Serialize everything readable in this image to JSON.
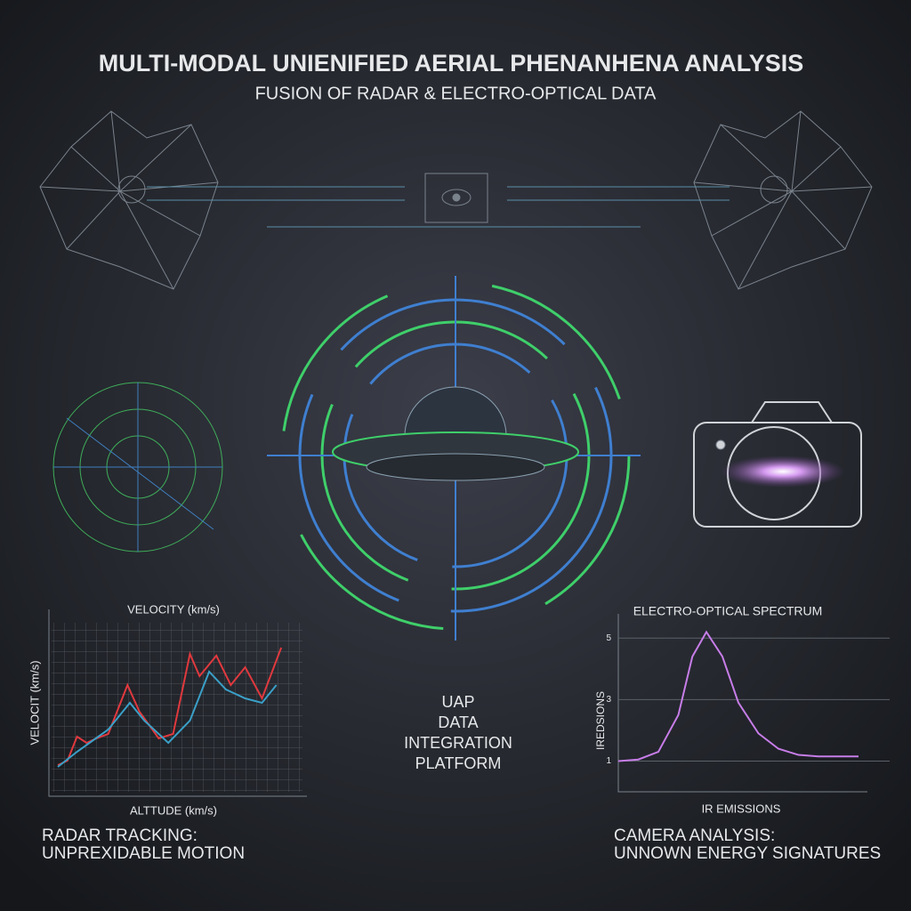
{
  "header": {
    "title": "MULTI-MODAL UNIENIFIED AERIAL PHENANHENA ANALYSIS",
    "subtitle": "FUSION OF RADAR & ELECTRO-OPTICAL DATA"
  },
  "center_label": [
    "UAP",
    "DATA",
    "INTEGRATION",
    "PLATFORM"
  ],
  "captions": {
    "left": [
      "RADAR TRACKING:",
      "UNPREXIDABLE MOTION"
    ],
    "right": [
      "CAMERA ANALYSIS:",
      "UNNOWN ENERGY SIGNATURES"
    ]
  },
  "chart_data": [
    {
      "type": "line",
      "title": "VELOCITY (km/s)",
      "x_label": "ALTTUDE (km/s)",
      "y_label": "VELOCIT (km/s)",
      "xlim": [
        0,
        10
      ],
      "ylim": [
        0,
        10
      ],
      "grid": true,
      "series": [
        {
          "color": "#e0393e",
          "x": [
            0,
            0.4,
            0.8,
            1.2,
            1.6,
            2.1,
            2.9,
            3.4,
            4.2,
            4.8,
            5.5,
            5.9,
            6.6,
            7.2,
            7.8,
            8.5,
            9.3
          ],
          "values": [
            1.75,
            2,
            3.35,
            3,
            3.25,
            3.5,
            6.25,
            4.75,
            3.25,
            3.5,
            8,
            6.75,
            7.9,
            6.25,
            7.25,
            5.5,
            8.35
          ]
        },
        {
          "color": "#3aa0c8",
          "x": [
            0,
            0.8,
            2.1,
            3.0,
            3.6,
            4.6,
            5.5,
            6.3,
            7.0,
            7.8,
            8.5,
            9.1
          ],
          "values": [
            1.65,
            2.5,
            3.75,
            5.25,
            4.25,
            3,
            4.25,
            7,
            6,
            5.5,
            5.25,
            6.25
          ]
        }
      ]
    },
    {
      "type": "line",
      "title": "ELECTRO-OPTICAL SPECTRUM",
      "x_label": "IR EMISSIONS",
      "y_label": "IREDSIONS",
      "xlim": [
        0,
        12
      ],
      "ylim": [
        0,
        5.5
      ],
      "yticks": [
        1,
        3,
        5
      ],
      "grid": true,
      "series": [
        {
          "color": "#c77de8",
          "x": [
            0,
            1,
            2,
            3,
            3.7,
            4.4,
            5.2,
            6,
            7,
            8,
            9,
            10,
            11,
            12
          ],
          "values": [
            1.0,
            1.05,
            1.3,
            2.5,
            4.4,
            5.2,
            4.4,
            2.9,
            1.9,
            1.4,
            1.2,
            1.15,
            1.15,
            1.15
          ]
        }
      ]
    }
  ]
}
